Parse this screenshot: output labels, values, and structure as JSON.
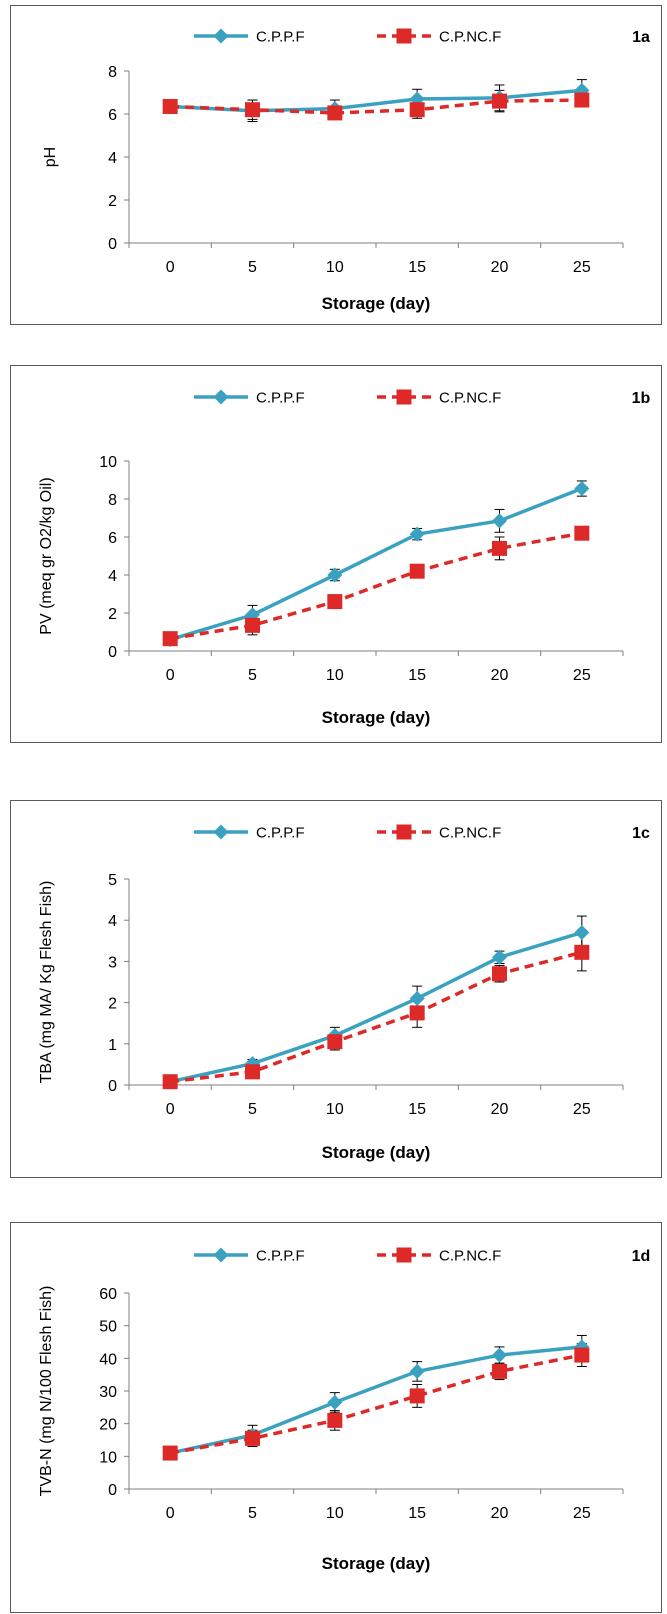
{
  "colors": {
    "series1": "#3aa1c0",
    "series2": "#dd2a28",
    "axis": "#808080",
    "frame": "#5a5a5a"
  },
  "chart_data": [
    {
      "type": "line",
      "panel_label": "1a",
      "title": "",
      "xlabel": "Storage (day)",
      "ylabel": "pH",
      "x": [
        0,
        5,
        10,
        15,
        20,
        25
      ],
      "ylim": [
        0,
        8
      ],
      "yticks": [
        0,
        2,
        4,
        6,
        8
      ],
      "grid": false,
      "legend": "top",
      "series": [
        {
          "name": "C.P.P.F",
          "values": [
            6.35,
            6.15,
            6.25,
            6.7,
            6.75,
            7.1
          ],
          "errors": [
            0.1,
            0.5,
            0.4,
            0.45,
            0.6,
            0.5
          ],
          "marker": "diamond",
          "line": "solid",
          "color": "#3aa1c0"
        },
        {
          "name": "C.P.NC.F",
          "values": [
            6.35,
            6.2,
            6.05,
            6.2,
            6.6,
            6.65
          ],
          "errors": [
            0.1,
            0.45,
            0.3,
            0.4,
            0.5,
            0.25
          ],
          "marker": "square",
          "line": "dashed",
          "color": "#dd2a28"
        }
      ]
    },
    {
      "type": "line",
      "panel_label": "1b",
      "title": "",
      "xlabel": "Storage (day)",
      "ylabel": "PV (meq gr O2/kg Oil)",
      "x": [
        0,
        5,
        10,
        15,
        20,
        25
      ],
      "ylim": [
        0,
        10
      ],
      "yticks": [
        0,
        2,
        4,
        6,
        8,
        10
      ],
      "grid": false,
      "legend": "top",
      "series": [
        {
          "name": "C.P.P.F",
          "values": [
            0.6,
            1.9,
            4.0,
            6.15,
            6.85,
            8.55
          ],
          "errors": [
            0.1,
            0.5,
            0.3,
            0.3,
            0.6,
            0.4
          ],
          "marker": "diamond",
          "line": "solid",
          "color": "#3aa1c0"
        },
        {
          "name": "C.P.NC.F",
          "values": [
            0.65,
            1.35,
            2.6,
            4.2,
            5.4,
            6.2
          ],
          "errors": [
            0.1,
            0.5,
            0.2,
            0.3,
            0.6,
            0.2
          ],
          "marker": "square",
          "line": "dashed",
          "color": "#dd2a28"
        }
      ]
    },
    {
      "type": "line",
      "panel_label": "1c",
      "title": "",
      "xlabel": "Storage (day)",
      "ylabel": "TBA (mg MA/ Kg Flesh Fish)",
      "x": [
        0,
        5,
        10,
        15,
        20,
        25
      ],
      "ylim": [
        0,
        5
      ],
      "yticks": [
        0,
        1,
        2,
        3,
        4,
        5
      ],
      "grid": false,
      "legend": "top",
      "series": [
        {
          "name": "C.P.P.F",
          "values": [
            0.08,
            0.52,
            1.2,
            2.1,
            3.1,
            3.7
          ],
          "errors": [
            0.05,
            0.1,
            0.2,
            0.3,
            0.15,
            0.4
          ],
          "marker": "diamond",
          "line": "solid",
          "color": "#3aa1c0"
        },
        {
          "name": "C.P.NC.F",
          "values": [
            0.08,
            0.32,
            1.05,
            1.75,
            2.7,
            3.22
          ],
          "errors": [
            0.05,
            0.1,
            0.2,
            0.35,
            0.2,
            0.45
          ],
          "marker": "square",
          "line": "dashed",
          "color": "#dd2a28"
        }
      ]
    },
    {
      "type": "line",
      "panel_label": "1d",
      "title": "",
      "xlabel": "Storage (day)",
      "ylabel": "TVB-N (mg N/100 Flesh Fish)",
      "x": [
        0,
        5,
        10,
        15,
        20,
        25
      ],
      "ylim": [
        0,
        60
      ],
      "yticks": [
        0,
        10,
        20,
        30,
        40,
        50,
        60
      ],
      "grid": false,
      "legend": "top",
      "series": [
        {
          "name": "C.P.P.F",
          "values": [
            11,
            16.5,
            26.5,
            36,
            41,
            43.5
          ],
          "errors": [
            1,
            3,
            3,
            3,
            2.5,
            3.5
          ],
          "marker": "diamond",
          "line": "solid",
          "color": "#3aa1c0"
        },
        {
          "name": "C.P.NC.F",
          "values": [
            11,
            15.5,
            21,
            28.5,
            36,
            41
          ],
          "errors": [
            1,
            2.5,
            3,
            3.5,
            2.5,
            3.5
          ],
          "marker": "square",
          "line": "dashed",
          "color": "#dd2a28"
        }
      ]
    }
  ]
}
